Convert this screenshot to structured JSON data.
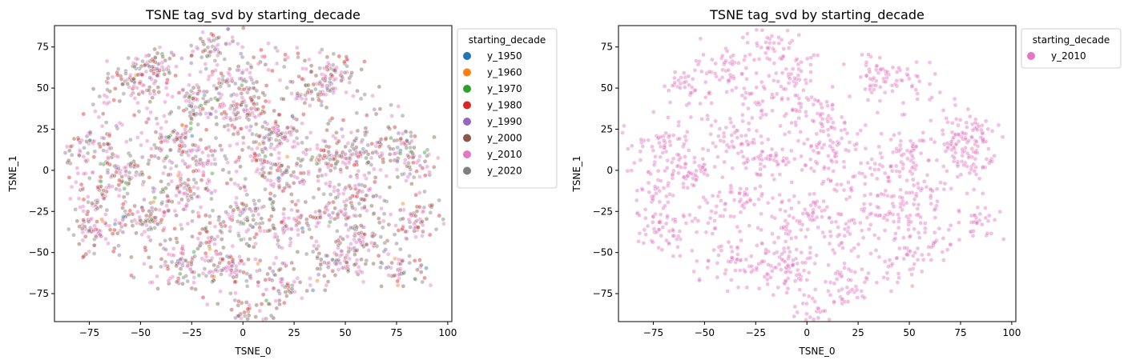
{
  "chart_data": [
    {
      "type": "scatter",
      "title": "TSNE tag_svd by starting_decade",
      "xlabel": "TSNE_0",
      "ylabel": "TSNE_1",
      "xlim": [
        -92,
        102
      ],
      "ylim": [
        -92,
        88
      ],
      "xticks": [
        -75,
        -50,
        -25,
        0,
        25,
        50,
        75,
        100
      ],
      "yticks": [
        -75,
        -50,
        -25,
        0,
        25,
        50,
        75
      ],
      "xtick_labels": [
        "−75",
        "−50",
        "−25",
        "0",
        "25",
        "50",
        "75",
        "100"
      ],
      "ytick_labels": [
        "−75",
        "−50",
        "−25",
        "0",
        "25",
        "50",
        "75"
      ],
      "grid": false,
      "legend_placement": "outside-upper-right",
      "legend_title": "starting_decade",
      "series": [
        {
          "name": "y_1950",
          "color": "#1f77b4"
        },
        {
          "name": "y_1960",
          "color": "#ff7f0e"
        },
        {
          "name": "y_1970",
          "color": "#2ca02c"
        },
        {
          "name": "y_1980",
          "color": "#d62728"
        },
        {
          "name": "y_1990",
          "color": "#9467bd"
        },
        {
          "name": "y_2000",
          "color": "#8c564b"
        },
        {
          "name": "y_2010",
          "color": "#e377c2"
        },
        {
          "name": "y_2020",
          "color": "#7f7f7f"
        }
      ],
      "clusters": [
        [
          -75,
          15
        ],
        [
          -72,
          -12
        ],
        [
          -72,
          -35
        ],
        [
          -55,
          55
        ],
        [
          -55,
          0
        ],
        [
          -48,
          -30
        ],
        [
          -40,
          62
        ],
        [
          -35,
          20
        ],
        [
          -30,
          -15
        ],
        [
          -30,
          -55
        ],
        [
          -22,
          40
        ],
        [
          -18,
          5
        ],
        [
          -15,
          75
        ],
        [
          -12,
          -40
        ],
        [
          -8,
          -60
        ],
        [
          -5,
          55
        ],
        [
          0,
          35
        ],
        [
          0,
          -25
        ],
        [
          8,
          10
        ],
        [
          5,
          -85
        ],
        [
          15,
          22
        ],
        [
          18,
          -5
        ],
        [
          20,
          -35
        ],
        [
          20,
          -70
        ],
        [
          35,
          52
        ],
        [
          38,
          5
        ],
        [
          40,
          -25
        ],
        [
          45,
          58
        ],
        [
          48,
          -55
        ],
        [
          50,
          10
        ],
        [
          55,
          -15
        ],
        [
          60,
          -40
        ],
        [
          75,
          15
        ],
        [
          78,
          -60
        ],
        [
          82,
          8
        ],
        [
          85,
          -30
        ]
      ]
    },
    {
      "type": "scatter",
      "title": "TSNE tag_svd by starting_decade",
      "xlabel": "TSNE_0",
      "ylabel": "TSNE_1",
      "xlim": [
        -92,
        102
      ],
      "ylim": [
        -92,
        88
      ],
      "xticks": [
        -75,
        -50,
        -25,
        0,
        25,
        50,
        75,
        100
      ],
      "yticks": [
        -75,
        -50,
        -25,
        0,
        25,
        50,
        75
      ],
      "xtick_labels": [
        "−75",
        "−50",
        "−25",
        "0",
        "25",
        "50",
        "75",
        "100"
      ],
      "ytick_labels": [
        "−75",
        "−50",
        "−25",
        "0",
        "25",
        "50",
        "75"
      ],
      "grid": false,
      "legend_placement": "outside-upper-right",
      "legend_title": "starting_decade",
      "series": [
        {
          "name": "y_2010",
          "color": "#e377c2"
        }
      ],
      "clusters": [
        [
          -75,
          15
        ],
        [
          -72,
          -12
        ],
        [
          -72,
          -35
        ],
        [
          -55,
          55
        ],
        [
          -55,
          0
        ],
        [
          -48,
          -30
        ],
        [
          -40,
          62
        ],
        [
          -35,
          20
        ],
        [
          -30,
          -15
        ],
        [
          -30,
          -55
        ],
        [
          -22,
          40
        ],
        [
          -18,
          5
        ],
        [
          -15,
          75
        ],
        [
          -12,
          -40
        ],
        [
          -8,
          -60
        ],
        [
          -5,
          55
        ],
        [
          0,
          35
        ],
        [
          0,
          -25
        ],
        [
          8,
          10
        ],
        [
          5,
          -85
        ],
        [
          15,
          22
        ],
        [
          18,
          -5
        ],
        [
          20,
          -35
        ],
        [
          20,
          -70
        ],
        [
          35,
          52
        ],
        [
          38,
          5
        ],
        [
          40,
          -25
        ],
        [
          45,
          58
        ],
        [
          48,
          -55
        ],
        [
          50,
          10
        ],
        [
          55,
          -15
        ],
        [
          60,
          -40
        ],
        [
          75,
          15
        ],
        [
          80,
          25
        ],
        [
          82,
          8
        ],
        [
          85,
          -30
        ]
      ]
    }
  ]
}
